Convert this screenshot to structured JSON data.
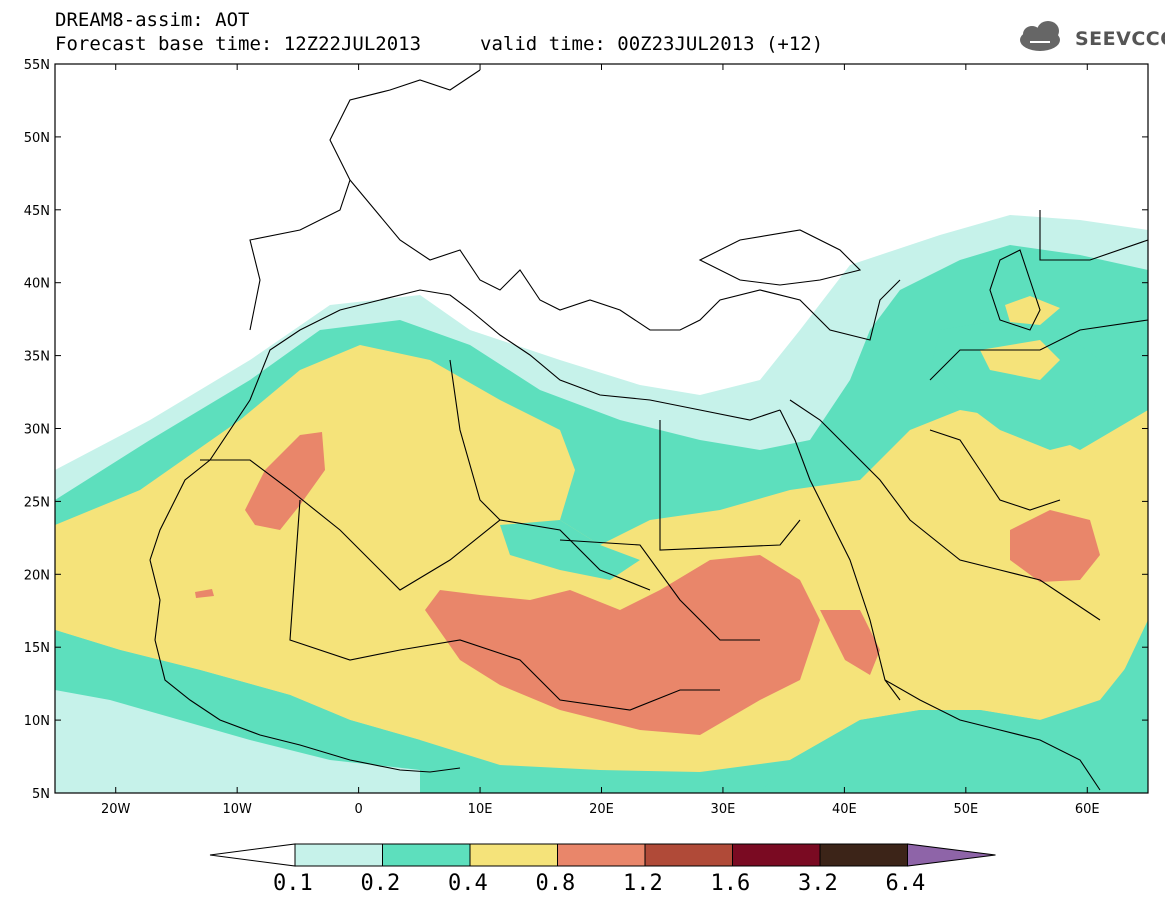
{
  "header": {
    "title": "DREAM8-assim: AOT",
    "base_time": "Forecast base time: 12Z22JUL2013",
    "valid_time": "valid time: 00Z23JUL2013 (+12)",
    "logo_text": "SEEVCCC"
  },
  "map": {
    "lon_range": [
      -25,
      65
    ],
    "lat_range": [
      5,
      55
    ],
    "lat_ticks": [
      "55N",
      "50N",
      "45N",
      "40N",
      "35N",
      "30N",
      "25N",
      "20N",
      "15N",
      "10N",
      "5N"
    ],
    "lon_ticks": [
      "20W",
      "10W",
      "0",
      "10E",
      "20E",
      "30E",
      "40E",
      "50E",
      "60E"
    ],
    "field": "aerosol optical thickness"
  },
  "colorbar": {
    "levels": [
      "0.1",
      "0.2",
      "0.4",
      "0.8",
      "1.2",
      "1.6",
      "3.2",
      "6.4"
    ],
    "colors": [
      "#ffffff",
      "#c6f2ea",
      "#5ddfbd",
      "#f5e37a",
      "#e9866a",
      "#b04a38",
      "#7a0a22",
      "#3c2418",
      "#8e64a8"
    ]
  }
}
